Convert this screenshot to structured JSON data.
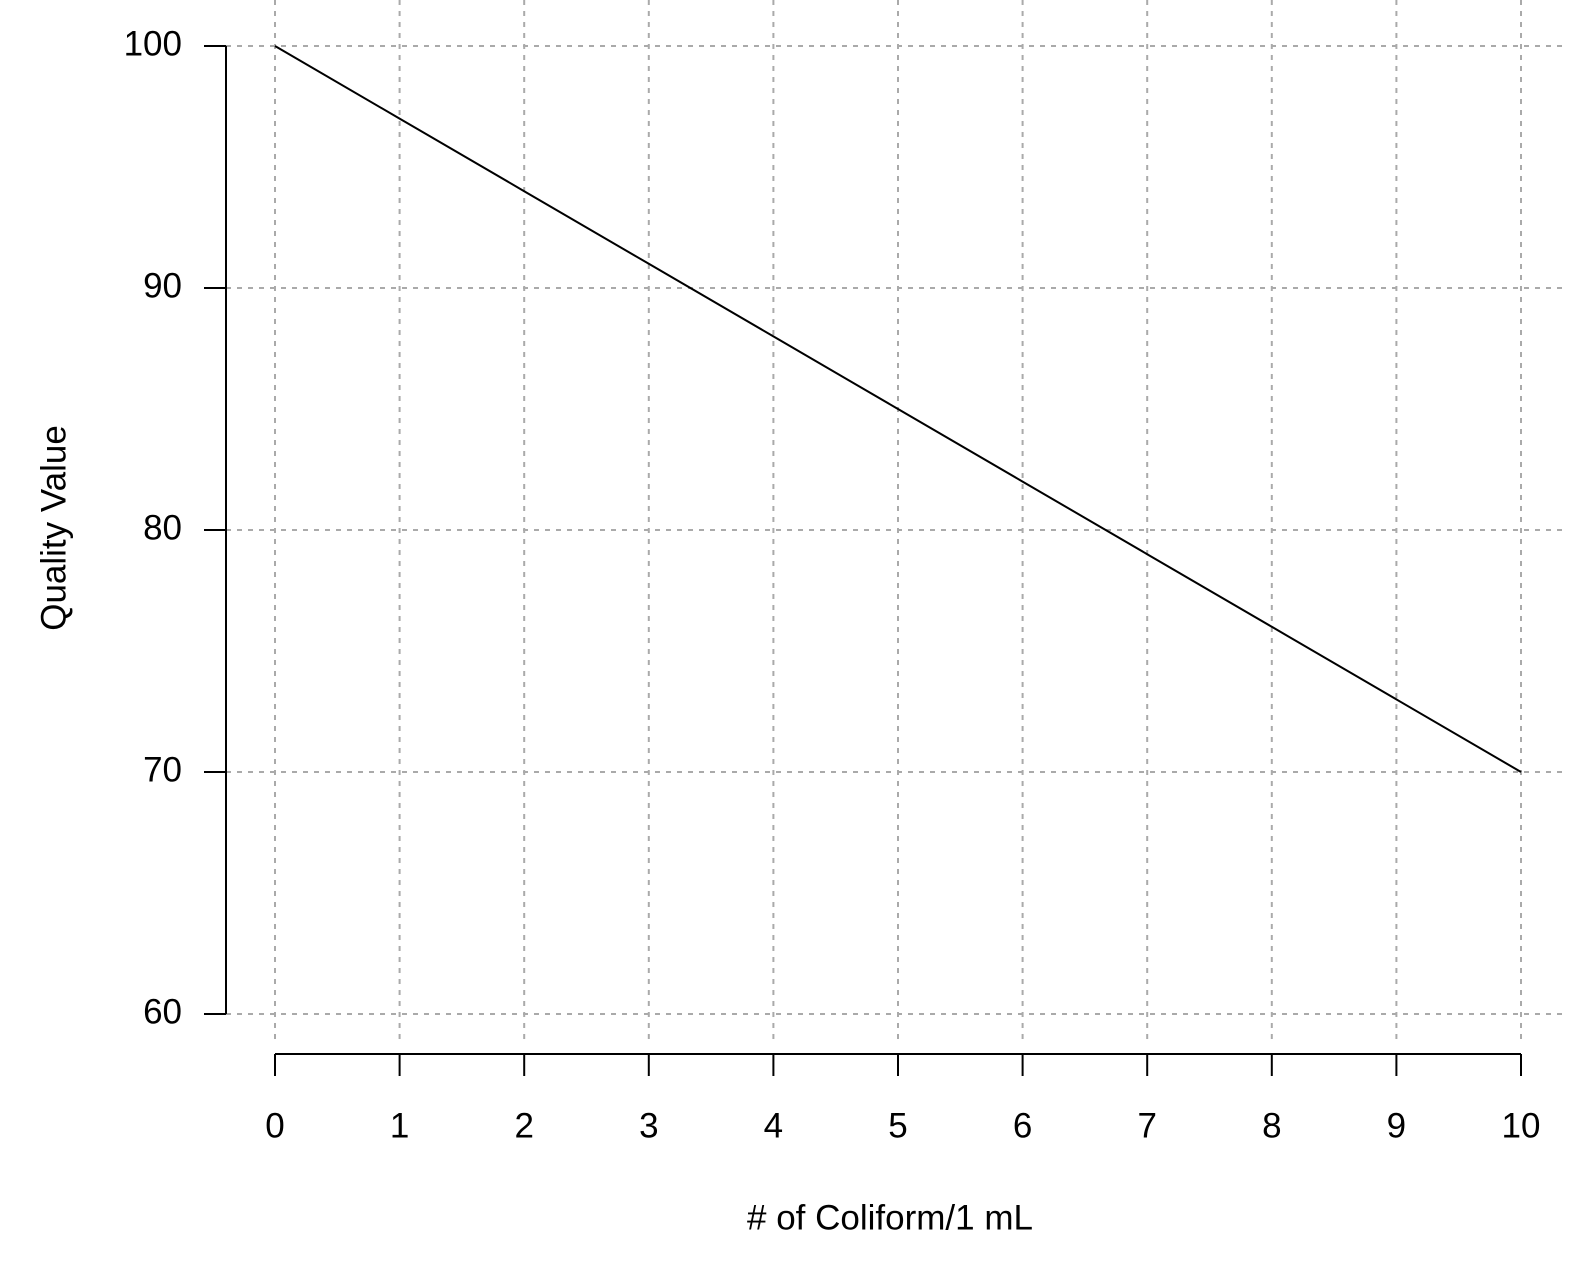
{
  "chart_data": {
    "type": "line",
    "x_label": "# of Coliform/1 mL",
    "y_label": "Quality Value",
    "x": [
      0,
      1,
      2,
      3,
      4,
      5,
      6,
      7,
      8,
      9,
      10
    ],
    "series": [
      {
        "color": "#000000",
        "values": [
          100,
          97,
          94,
          91,
          88,
          85,
          82,
          79,
          76,
          73,
          70
        ]
      }
    ],
    "xlim": [
      0,
      10
    ],
    "xticks": [
      0,
      1,
      2,
      3,
      4,
      5,
      6,
      7,
      8,
      9,
      10
    ],
    "ylim": [
      60,
      100
    ],
    "yticks": [
      60,
      70,
      80,
      90,
      100
    ],
    "grid": true
  }
}
